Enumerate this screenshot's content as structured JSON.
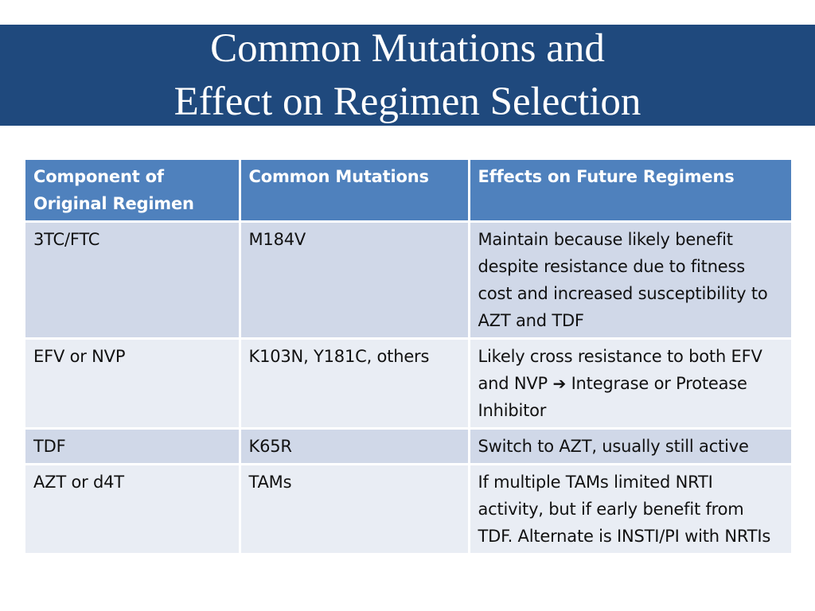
{
  "title": {
    "line1": "Common Mutations and",
    "line2": "Effect on Regimen Selection"
  },
  "table": {
    "headers": [
      "Component of Original Regimen",
      "Common Mutations",
      "Effects on Future Regimens"
    ],
    "rows": [
      {
        "component": "3TC/FTC",
        "mutations": "M184V",
        "effects": "Maintain because likely benefit despite resistance due to fitness cost and increased susceptibility to AZT and TDF"
      },
      {
        "component": "EFV or NVP",
        "mutations": "K103N, Y181C, others",
        "effects_before_arrow": "Likely cross resistance to both EFV and NVP",
        "effects_arrow": "➔",
        "effects_after_arrow": "Integrase or Protease Inhibitor"
      },
      {
        "component": "TDF",
        "mutations": "K65R",
        "effects": "Switch to AZT, usually still active"
      },
      {
        "component": "AZT or d4T",
        "mutations": "TAMs",
        "effects": "If multiple TAMs limited NRTI activity, but if early benefit from TDF. Alternate is INSTI/PI with NRTIs"
      }
    ]
  },
  "colors": {
    "title_band": "#1f497d",
    "header_fill": "#4f81bd",
    "row_odd": "#d0d8e8",
    "row_even": "#e9edf4"
  }
}
